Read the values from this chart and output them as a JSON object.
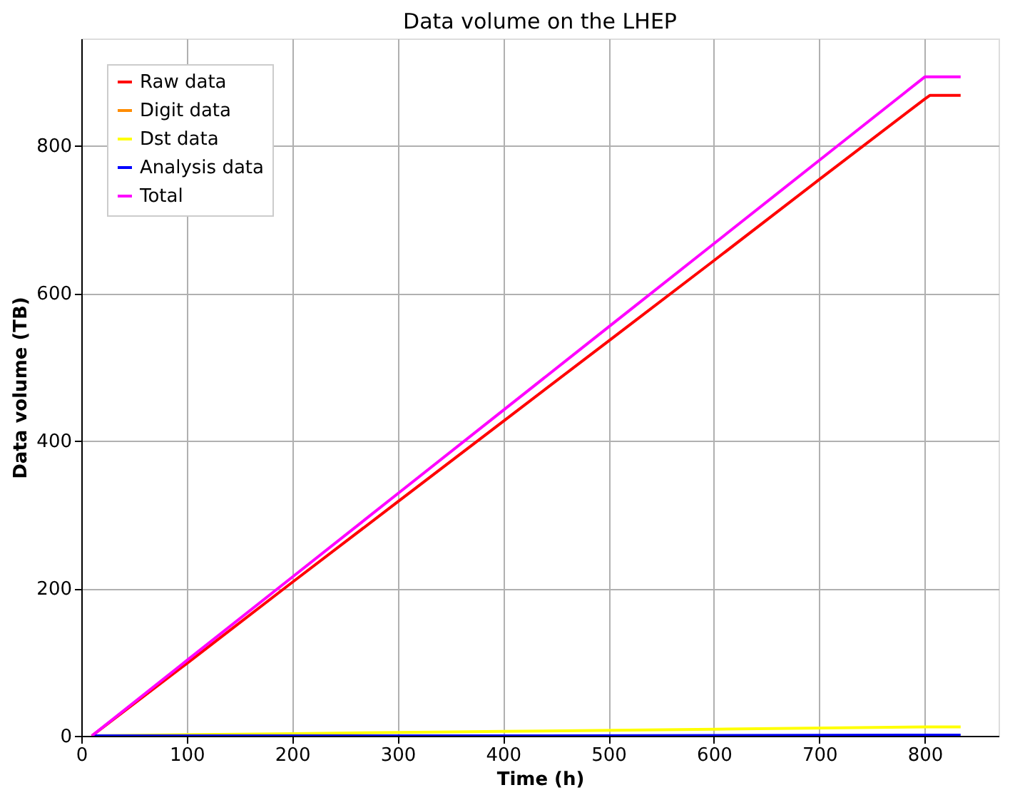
{
  "chart_data": {
    "type": "line",
    "title": "Data volume on the LHEP",
    "xlabel": "Time (h)",
    "ylabel": "Data volume (TB)",
    "xlim": [
      0,
      870
    ],
    "ylim": [
      0,
      945
    ],
    "xticks": [
      0,
      100,
      200,
      300,
      400,
      500,
      600,
      700,
      800
    ],
    "yticks": [
      0,
      200,
      400,
      600,
      800
    ],
    "grid": true,
    "legend": "top left",
    "marker": "none",
    "line_style": "solid",
    "series": [
      {
        "name": "Raw data",
        "color": "#ff0000",
        "x": [
          10,
          100,
          200,
          300,
          400,
          500,
          600,
          700,
          800,
          805,
          834
        ],
        "values": [
          0,
          98,
          208,
          317,
          426,
          535,
          644,
          754,
          863,
          868,
          868
        ]
      },
      {
        "name": "Digit data",
        "color": "#ff8c00"
      },
      {
        "name": "Dst data",
        "color": "#ffff00",
        "x": [
          10,
          200,
          400,
          600,
          800,
          834
        ],
        "values": [
          0,
          3,
          6,
          9,
          12,
          12
        ]
      },
      {
        "name": "Analysis data",
        "color": "#0000ff",
        "x": [
          10,
          400,
          834
        ],
        "values": [
          0,
          0,
          1
        ]
      },
      {
        "name": "Total",
        "color": "#ff00ff",
        "x": [
          10,
          100,
          200,
          300,
          400,
          500,
          600,
          700,
          800,
          834
        ],
        "values": [
          0,
          102,
          215,
          328,
          441,
          554,
          667,
          780,
          893,
          893
        ]
      }
    ]
  }
}
